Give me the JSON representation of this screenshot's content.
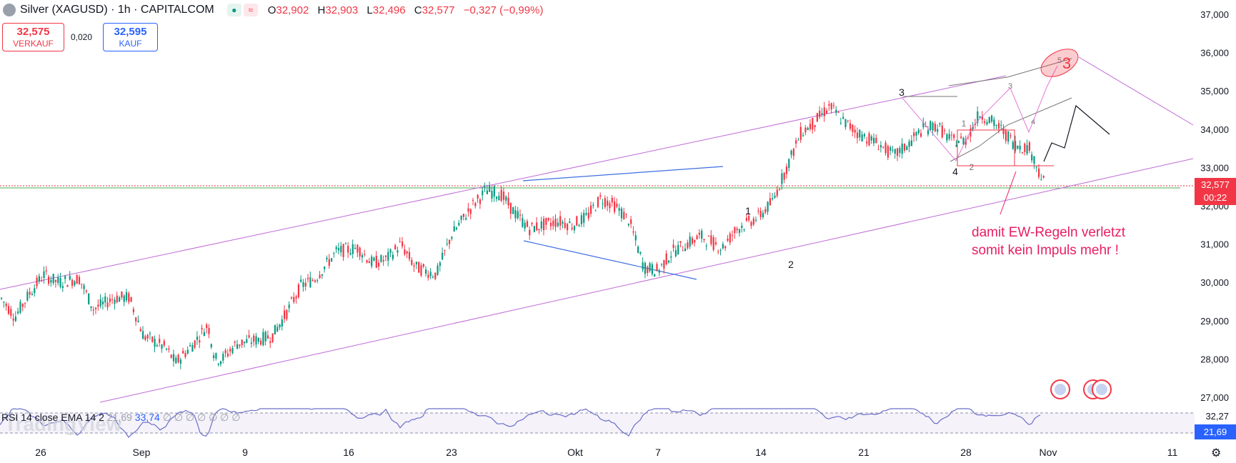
{
  "header": {
    "title": "Silver (XAGUSD) · 1h · CAPITALCOM",
    "ohlc": {
      "o_label": "O",
      "o": "32,902",
      "h_label": "H",
      "h": "32,903",
      "l_label": "L",
      "l": "32,496",
      "c_label": "C",
      "c": "32,577",
      "change": "−0,327 (−0,99%)"
    }
  },
  "trade_buttons": {
    "sell_price": "32,575",
    "sell_label": "VERKAUF",
    "spread": "0,020",
    "buy_price": "32,595",
    "buy_label": "KAUF"
  },
  "price_axis": {
    "ticks": [
      "37,000",
      "36,000",
      "35,000",
      "34,000",
      "33,000",
      "32,000",
      "31,000",
      "30,000",
      "29,000",
      "28,000",
      "27,000"
    ],
    "current_price": "32,577",
    "countdown": "00:22"
  },
  "time_axis": {
    "ticks": [
      "26",
      "Sep",
      "9",
      "16",
      "23",
      "Okt",
      "7",
      "14",
      "21",
      "28",
      "Nov",
      "11"
    ]
  },
  "annotations": {
    "note_line1": "damit EW-Regeln verletzt",
    "note_line2": "somit kein Impuls mehr !",
    "wave_labels": [
      "1",
      "2",
      "3",
      "4",
      "1",
      "2",
      "3",
      "4",
      "5"
    ]
  },
  "rsi": {
    "label": "RSI 14 close EMA 14 2",
    "vals": "21,69",
    "val2": "33,74",
    "na": "∅ ∅ ∅ ∅ ∅ ∅ ∅",
    "axis": [
      "32,27"
    ],
    "current": "21,69"
  },
  "watermark": "TradingView",
  "colors": {
    "up": "#089981",
    "down": "#f23645",
    "channel": "#c06ad6",
    "blue": "#3d6fe0",
    "rsi": "#6a6fc7"
  },
  "chart_data": {
    "type": "candlestick",
    "symbol": "Silver (XAGUSD)",
    "interval": "1h",
    "ylim": [
      26.8,
      37.2
    ],
    "x_dates": [
      "26",
      "Sep",
      "9",
      "16",
      "23",
      "Okt",
      "7",
      "14",
      "21",
      "28",
      "Nov",
      "11"
    ],
    "close_path": [
      [
        0,
        29.6
      ],
      [
        20,
        29.1
      ],
      [
        40,
        29.7
      ],
      [
        60,
        30.2
      ],
      [
        80,
        30.0
      ],
      [
        110,
        30.1
      ],
      [
        130,
        29.3
      ],
      [
        160,
        29.6
      ],
      [
        180,
        29.6
      ],
      [
        200,
        28.6
      ],
      [
        230,
        28.3
      ],
      [
        245,
        27.9
      ],
      [
        270,
        28.4
      ],
      [
        290,
        28.9
      ],
      [
        300,
        28.0
      ],
      [
        310,
        28.0
      ],
      [
        330,
        28.4
      ],
      [
        360,
        28.5
      ],
      [
        380,
        28.6
      ],
      [
        400,
        29.2
      ],
      [
        420,
        29.9
      ],
      [
        440,
        30.1
      ],
      [
        470,
        30.8
      ],
      [
        500,
        30.9
      ],
      [
        520,
        30.5
      ],
      [
        540,
        30.6
      ],
      [
        560,
        31.0
      ],
      [
        580,
        30.4
      ],
      [
        610,
        30.2
      ],
      [
        630,
        31.2
      ],
      [
        660,
        32.0
      ],
      [
        680,
        32.4
      ],
      [
        700,
        32.3
      ],
      [
        720,
        31.8
      ],
      [
        740,
        31.4
      ],
      [
        760,
        31.5
      ],
      [
        780,
        31.6
      ],
      [
        800,
        31.5
      ],
      [
        820,
        31.7
      ],
      [
        840,
        32.2
      ],
      [
        860,
        32.0
      ],
      [
        880,
        31.6
      ],
      [
        900,
        30.4
      ],
      [
        920,
        30.3
      ],
      [
        940,
        30.8
      ],
      [
        960,
        31.0
      ],
      [
        980,
        31.2
      ],
      [
        1000,
        31.0
      ],
      [
        1010,
        30.9
      ],
      [
        1030,
        31.4
      ],
      [
        1060,
        31.7
      ],
      [
        1080,
        32.1
      ],
      [
        1100,
        33.0
      ],
      [
        1120,
        33.9
      ],
      [
        1140,
        34.2
      ],
      [
        1160,
        34.6
      ],
      [
        1180,
        34.2
      ],
      [
        1200,
        33.9
      ],
      [
        1210,
        33.8
      ],
      [
        1230,
        33.6
      ],
      [
        1250,
        33.3
      ],
      [
        1270,
        33.6
      ],
      [
        1290,
        34.0
      ],
      [
        1310,
        34.1
      ],
      [
        1330,
        33.7
      ],
      [
        1350,
        33.7
      ],
      [
        1370,
        34.4
      ],
      [
        1380,
        34.3
      ],
      [
        1400,
        34.0
      ],
      [
        1420,
        33.6
      ],
      [
        1440,
        33.5
      ],
      [
        1460,
        32.6
      ]
    ],
    "last_close": 32.577
  }
}
